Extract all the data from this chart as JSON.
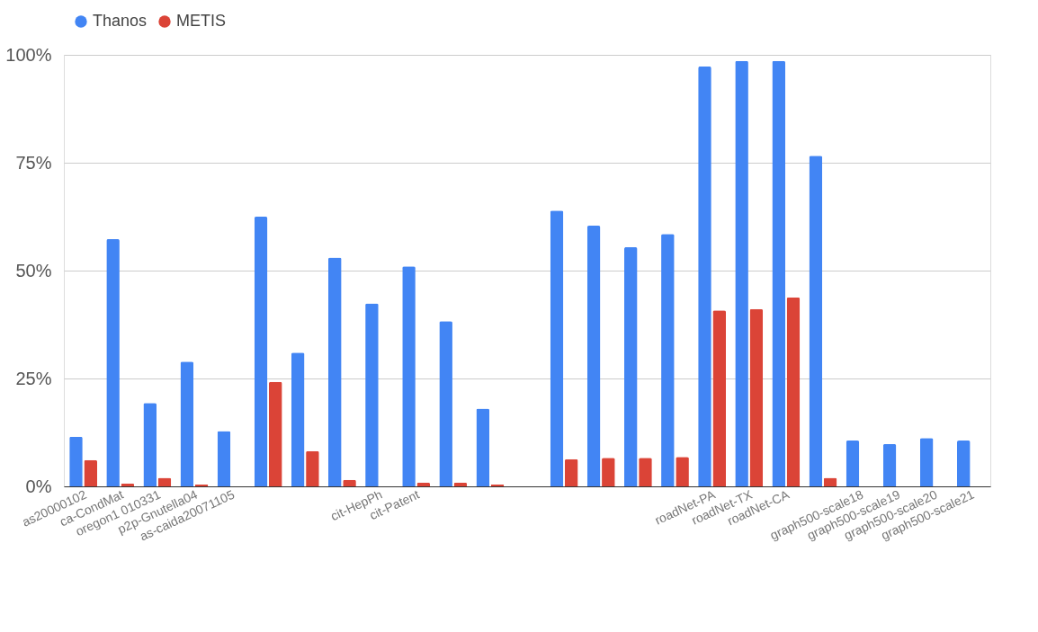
{
  "chart_data": {
    "type": "bar",
    "categories": [
      "as20000102",
      "ca-CondMat",
      "oregon1 010331",
      "p2p-Gnutella04",
      "as-caida20071105",
      null,
      null,
      null,
      "cit-HepPh",
      "cit-Patent",
      null,
      null,
      null,
      null,
      null,
      null,
      null,
      "roadNet-PA",
      "roadNet-TX",
      "roadNet-CA",
      null,
      "graph500-scale18",
      "graph500-scale19",
      "graph500-scale20",
      "graph500-scale21"
    ],
    "series": [
      {
        "name": "Thanos",
        "color": "#4285f4",
        "values": [
          11.5,
          57.3,
          19.3,
          28.9,
          12.8,
          62.5,
          31.0,
          53.0,
          42.4,
          51.0,
          38.3,
          18.0,
          0,
          63.9,
          60.4,
          55.4,
          58.5,
          97.3,
          98.6,
          98.6,
          76.6,
          10.6,
          9.8,
          11.2,
          10.6
        ]
      },
      {
        "name": "METIS",
        "color": "#db4437",
        "values": [
          6.1,
          0.7,
          2.0,
          0.4,
          0,
          24.2,
          8.2,
          1.5,
          0,
          0.9,
          0.9,
          0.4,
          0,
          6.3,
          6.6,
          6.6,
          6.8,
          40.8,
          41.1,
          43.8,
          2.0,
          0,
          0,
          0,
          0
        ]
      }
    ],
    "ylim": [
      0,
      100
    ],
    "yticks": [
      {
        "value": 0,
        "label": "0%"
      },
      {
        "value": 25,
        "label": "25%"
      },
      {
        "value": 50,
        "label": "50%"
      },
      {
        "value": 75,
        "label": "75%"
      },
      {
        "value": 100,
        "label": "100%"
      }
    ],
    "grid": "y",
    "legend": "top"
  }
}
